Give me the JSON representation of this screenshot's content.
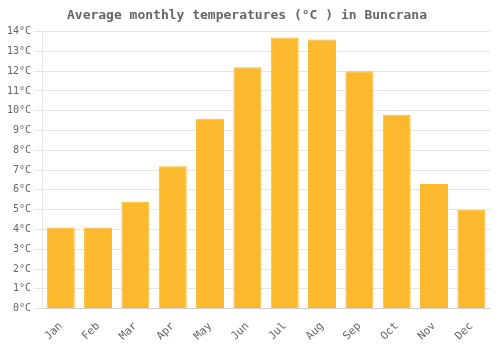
{
  "chart_data": {
    "type": "bar",
    "title": "Average monthly temperatures (°C ) in Buncrana",
    "categories": [
      "Jan",
      "Feb",
      "Mar",
      "Apr",
      "May",
      "Jun",
      "Jul",
      "Aug",
      "Sep",
      "Oct",
      "Nov",
      "Dec"
    ],
    "values": [
      4.1,
      4.1,
      5.4,
      7.2,
      9.6,
      12.2,
      13.7,
      13.6,
      12.0,
      9.8,
      6.3,
      5.0
    ],
    "color": "#FDB92E",
    "ylim": [
      0,
      14
    ],
    "yticks": [
      {
        "value": 0,
        "label": "0°C"
      },
      {
        "value": 1,
        "label": "1°C"
      },
      {
        "value": 2,
        "label": "2°C"
      },
      {
        "value": 3,
        "label": "3°C"
      },
      {
        "value": 4,
        "label": "4°C"
      },
      {
        "value": 5,
        "label": "5°C"
      },
      {
        "value": 6,
        "label": "6°C"
      },
      {
        "value": 7,
        "label": "7°C"
      },
      {
        "value": 8,
        "label": "8°C"
      },
      {
        "value": 9,
        "label": "9°C"
      },
      {
        "value": 10,
        "label": "10°C"
      },
      {
        "value": 11,
        "label": "11°C"
      },
      {
        "value": 12,
        "label": "12°C"
      },
      {
        "value": 13,
        "label": "13°C"
      },
      {
        "value": 14,
        "label": "14°C"
      }
    ],
    "grid": true
  }
}
